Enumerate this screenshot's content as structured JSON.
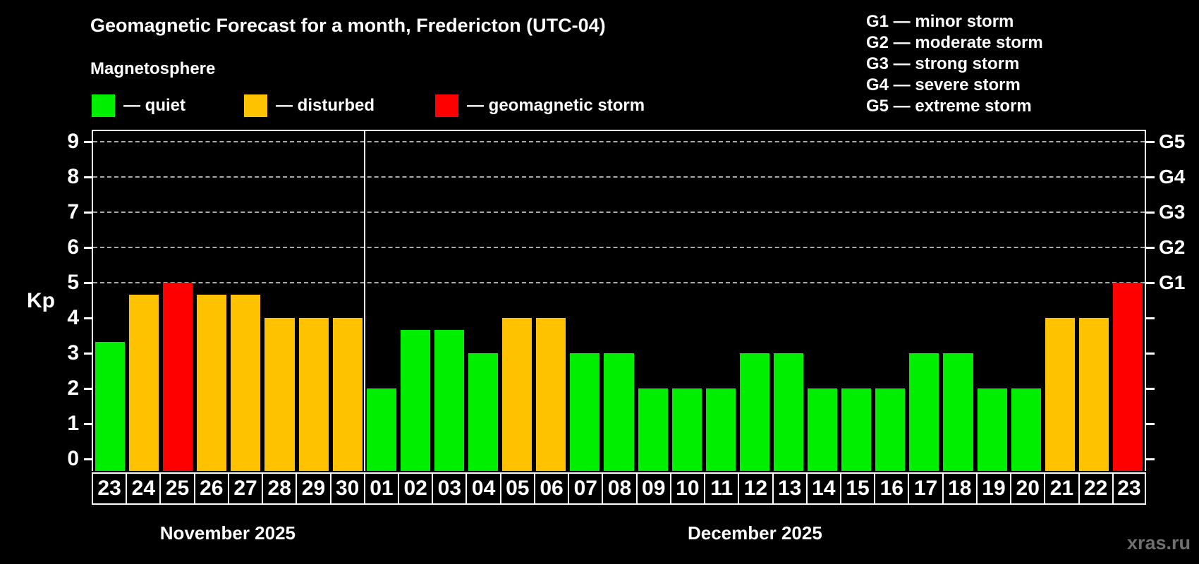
{
  "title": "Geomagnetic Forecast for a month, Fredericton (UTC-04)",
  "subtitle": "Magnetosphere",
  "watermark": "xras.ru",
  "colors": {
    "quiet": "#00ee00",
    "disturbed": "#ffc200",
    "storm": "#ff0000",
    "background": "#000000",
    "text": "#ffffff",
    "grid": "#a9a9a9",
    "axis": "#ffffff",
    "watermark": "#6f6f6f"
  },
  "legend": [
    {
      "status": "quiet",
      "label": "— quiet"
    },
    {
      "status": "disturbed",
      "label": "— disturbed"
    },
    {
      "status": "storm",
      "label": "— geomagnetic storm"
    }
  ],
  "storm_scale": [
    {
      "code": "G1",
      "name": "minor storm",
      "kp": 5
    },
    {
      "code": "G2",
      "name": "moderate storm",
      "kp": 6
    },
    {
      "code": "G3",
      "name": "strong storm",
      "kp": 7
    },
    {
      "code": "G4",
      "name": "severe storm",
      "kp": 8
    },
    {
      "code": "G5",
      "name": "extreme storm",
      "kp": 9
    }
  ],
  "y_axis": {
    "label": "Kp",
    "ticks": [
      0,
      1,
      2,
      3,
      4,
      5,
      6,
      7,
      8,
      9
    ]
  },
  "chart_data": {
    "type": "bar",
    "title": "Geomagnetic Forecast for a month, Fredericton (UTC-04)",
    "subtitle": "Magnetosphere",
    "ylabel": "Kp",
    "ylim": [
      0,
      9
    ],
    "grid_dashed_at_kp": [
      5,
      6,
      7,
      8,
      9
    ],
    "legend_position": "top-left",
    "months": [
      {
        "label": "November 2025",
        "days": [
          {
            "day": "23",
            "kp": 3.33,
            "status": "quiet"
          },
          {
            "day": "24",
            "kp": 4.67,
            "status": "disturbed"
          },
          {
            "day": "25",
            "kp": 5,
            "status": "storm"
          },
          {
            "day": "26",
            "kp": 4.67,
            "status": "disturbed"
          },
          {
            "day": "27",
            "kp": 4.67,
            "status": "disturbed"
          },
          {
            "day": "28",
            "kp": 4,
            "status": "disturbed"
          },
          {
            "day": "29",
            "kp": 4,
            "status": "disturbed"
          },
          {
            "day": "30",
            "kp": 4,
            "status": "disturbed"
          }
        ]
      },
      {
        "label": "December 2025",
        "days": [
          {
            "day": "01",
            "kp": 2,
            "status": "quiet"
          },
          {
            "day": "02",
            "kp": 3.67,
            "status": "quiet"
          },
          {
            "day": "03",
            "kp": 3.67,
            "status": "quiet"
          },
          {
            "day": "04",
            "kp": 3,
            "status": "quiet"
          },
          {
            "day": "05",
            "kp": 4,
            "status": "disturbed"
          },
          {
            "day": "06",
            "kp": 4,
            "status": "disturbed"
          },
          {
            "day": "07",
            "kp": 3,
            "status": "quiet"
          },
          {
            "day": "08",
            "kp": 3,
            "status": "quiet"
          },
          {
            "day": "09",
            "kp": 2,
            "status": "quiet"
          },
          {
            "day": "10",
            "kp": 2,
            "status": "quiet"
          },
          {
            "day": "11",
            "kp": 2,
            "status": "quiet"
          },
          {
            "day": "12",
            "kp": 3,
            "status": "quiet"
          },
          {
            "day": "13",
            "kp": 3,
            "status": "quiet"
          },
          {
            "day": "14",
            "kp": 2,
            "status": "quiet"
          },
          {
            "day": "15",
            "kp": 2,
            "status": "quiet"
          },
          {
            "day": "16",
            "kp": 2,
            "status": "quiet"
          },
          {
            "day": "17",
            "kp": 3,
            "status": "quiet"
          },
          {
            "day": "18",
            "kp": 3,
            "status": "quiet"
          },
          {
            "day": "19",
            "kp": 2,
            "status": "quiet"
          },
          {
            "day": "20",
            "kp": 2,
            "status": "quiet"
          },
          {
            "day": "21",
            "kp": 4,
            "status": "disturbed"
          },
          {
            "day": "22",
            "kp": 4,
            "status": "disturbed"
          },
          {
            "day": "23",
            "kp": 5,
            "status": "storm"
          }
        ]
      }
    ]
  }
}
